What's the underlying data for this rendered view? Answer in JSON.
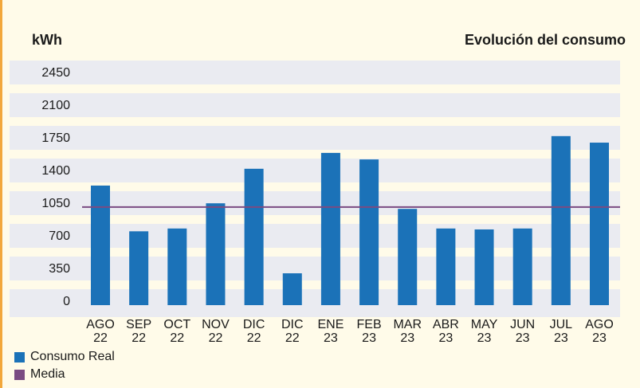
{
  "colors": {
    "background": "#fffbe9",
    "band": "#eaebf1",
    "bar": "#1b72b8",
    "mean_line": "#7a4b82",
    "text": "#1a1a1a"
  },
  "chart_data": {
    "type": "bar",
    "title": "Evolución del consumo",
    "ylabel": "kWh",
    "xlabel": "",
    "ylim": [
      0,
      2450
    ],
    "yticks": [
      0,
      350,
      700,
      1050,
      1400,
      1750,
      2100,
      2450
    ],
    "grid": "horizontal bands",
    "legend_position": "bottom-left",
    "categories": [
      [
        "AGO",
        "22"
      ],
      [
        "SEP",
        "22"
      ],
      [
        "OCT",
        "22"
      ],
      [
        "NOV",
        "22"
      ],
      [
        "DIC",
        "22"
      ],
      [
        "DIC",
        "22"
      ],
      [
        "ENE",
        "23"
      ],
      [
        "FEB",
        "23"
      ],
      [
        "MAR",
        "23"
      ],
      [
        "ABR",
        "23"
      ],
      [
        "MAY",
        "23"
      ],
      [
        "JUN",
        "23"
      ],
      [
        "JUL",
        "23"
      ],
      [
        "AGO",
        "23"
      ]
    ],
    "series": [
      {
        "name": "Consumo Real",
        "type": "bar",
        "values": [
          1230,
          740,
          770,
          1040,
          1410,
          290,
          1580,
          1510,
          980,
          770,
          760,
          770,
          1760,
          1690
        ]
      },
      {
        "name": "Media",
        "type": "line",
        "value": 1000
      }
    ]
  }
}
